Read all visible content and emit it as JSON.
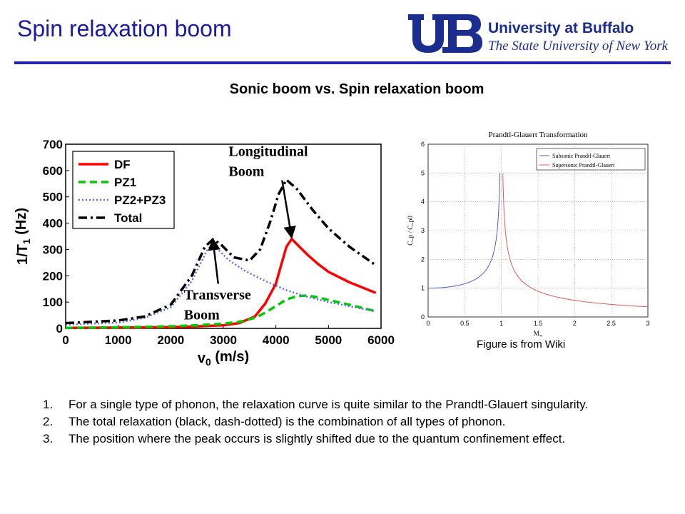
{
  "slide": {
    "title": "Spin relaxation boom",
    "subtitle": "Sonic boom vs. Spin relaxation boom",
    "logo_line1": "University at Buffalo",
    "logo_line2": "The State University of New York",
    "caption": "Figure is from Wiki",
    "notes": [
      {
        "num": "1.",
        "text": "For a single type of phonon, the relaxation curve is quite similar to the Prandtl-Glauert singularity."
      },
      {
        "num": "2.",
        "text": "The total relaxation (black, dash-dotted) is the combination of all types of phonon."
      },
      {
        "num": "3.",
        "text": "The position where the peak occurs is slightly shifted due to the quantum confinement effect."
      }
    ]
  },
  "colors": {
    "title": "#1a1aa6",
    "rule": "#2424b0",
    "logo": "#1b2d8f",
    "df": "#ff0000",
    "pz1": "#00cc00",
    "pz23": "#5a6ee0",
    "total": "#000000",
    "subsonic": "#4a5fd0",
    "supersonic": "#e05a5a"
  },
  "chart_data": [
    {
      "type": "line",
      "xlabel_main": "v",
      "xlabel_sub": "0",
      "xlabel_unit": " (m/s)",
      "ylabel_main": "1/T",
      "ylabel_sub": "1",
      "ylabel_unit": " (Hz)",
      "xlim": [
        0,
        6000
      ],
      "ylim": [
        0,
        700
      ],
      "xticks": [
        "0",
        "1000",
        "2000",
        "3000",
        "4000",
        "5000",
        "6000"
      ],
      "yticks": [
        "0",
        "100",
        "200",
        "300",
        "400",
        "500",
        "600",
        "700"
      ],
      "legend_position": "top-left",
      "series": [
        {
          "name": "DF",
          "style": "solid",
          "points": [
            [
              0,
              2
            ],
            [
              1000,
              3
            ],
            [
              2000,
              5
            ],
            [
              2500,
              8
            ],
            [
              3000,
              12
            ],
            [
              3300,
              20
            ],
            [
              3600,
              45
            ],
            [
              3800,
              95
            ],
            [
              4000,
              170
            ],
            [
              4100,
              240
            ],
            [
              4200,
              310
            ],
            [
              4300,
              340
            ],
            [
              4400,
              320
            ],
            [
              4600,
              280
            ],
            [
              4800,
              245
            ],
            [
              5000,
              215
            ],
            [
              5400,
              175
            ],
            [
              5900,
              135
            ]
          ]
        },
        {
          "name": "PZ1",
          "style": "dashed",
          "points": [
            [
              0,
              2
            ],
            [
              1000,
              4
            ],
            [
              2000,
              8
            ],
            [
              2500,
              12
            ],
            [
              3000,
              18
            ],
            [
              3300,
              25
            ],
            [
              3600,
              40
            ],
            [
              3800,
              60
            ],
            [
              4000,
              85
            ],
            [
              4200,
              110
            ],
            [
              4400,
              122
            ],
            [
              4600,
              125
            ],
            [
              4800,
              118
            ],
            [
              5000,
              108
            ],
            [
              5400,
              90
            ],
            [
              5900,
              65
            ]
          ]
        },
        {
          "name": "PZ2+PZ3",
          "style": "dotted",
          "points": [
            [
              0,
              14
            ],
            [
              1000,
              22
            ],
            [
              1500,
              40
            ],
            [
              2000,
              80
            ],
            [
              2400,
              180
            ],
            [
              2700,
              300
            ],
            [
              2800,
              320
            ],
            [
              2900,
              300
            ],
            [
              3100,
              260
            ],
            [
              3400,
              220
            ],
            [
              3800,
              180
            ],
            [
              4200,
              145
            ],
            [
              4600,
              120
            ],
            [
              5000,
              100
            ],
            [
              5500,
              80
            ],
            [
              5900,
              65
            ]
          ]
        },
        {
          "name": "Total",
          "style": "dashdot",
          "points": [
            [
              0,
              20
            ],
            [
              1000,
              30
            ],
            [
              1500,
              45
            ],
            [
              2000,
              90
            ],
            [
              2400,
              200
            ],
            [
              2650,
              310
            ],
            [
              2800,
              338
            ],
            [
              2950,
              320
            ],
            [
              3200,
              270
            ],
            [
              3500,
              258
            ],
            [
              3700,
              300
            ],
            [
              3900,
              410
            ],
            [
              4050,
              510
            ],
            [
              4200,
              565
            ],
            [
              4400,
              530
            ],
            [
              4700,
              450
            ],
            [
              5000,
              380
            ],
            [
              5400,
              310
            ],
            [
              5900,
              240
            ]
          ]
        }
      ],
      "annotations": [
        {
          "text_line1": "Longitudinal",
          "text_line2": "Boom",
          "x": 3100,
          "y": 655,
          "arrow_to": [
            4300,
            345
          ]
        },
        {
          "text_line1": "Transverse",
          "text_line2": "Boom",
          "x": 2250,
          "y": 110,
          "arrow_to": [
            2800,
            340
          ]
        }
      ]
    },
    {
      "type": "line",
      "title": "Prandtl-Glauert Transformation",
      "xlabel_main": "M",
      "xlabel_sub": "∞",
      "ylabel": "C_p / C_p0",
      "xlim": [
        0,
        3
      ],
      "ylim": [
        0,
        6
      ],
      "xticks": [
        "0",
        "0.5",
        "1",
        "1.5",
        "2",
        "2.5",
        "3"
      ],
      "yticks": [
        "0",
        "1",
        "2",
        "3",
        "4",
        "5",
        "6"
      ],
      "grid": true,
      "legend_position": "top-right",
      "series": [
        {
          "name": "Subsonic Prandtl-Glauert",
          "formula": "1/sqrt(1-M^2)",
          "x_range": [
            0,
            0.98
          ]
        },
        {
          "name": "Supersonic Prandtl-Glauert",
          "formula": "1/sqrt(M^2-1)",
          "x_range": [
            1.02,
            3
          ]
        }
      ]
    }
  ]
}
